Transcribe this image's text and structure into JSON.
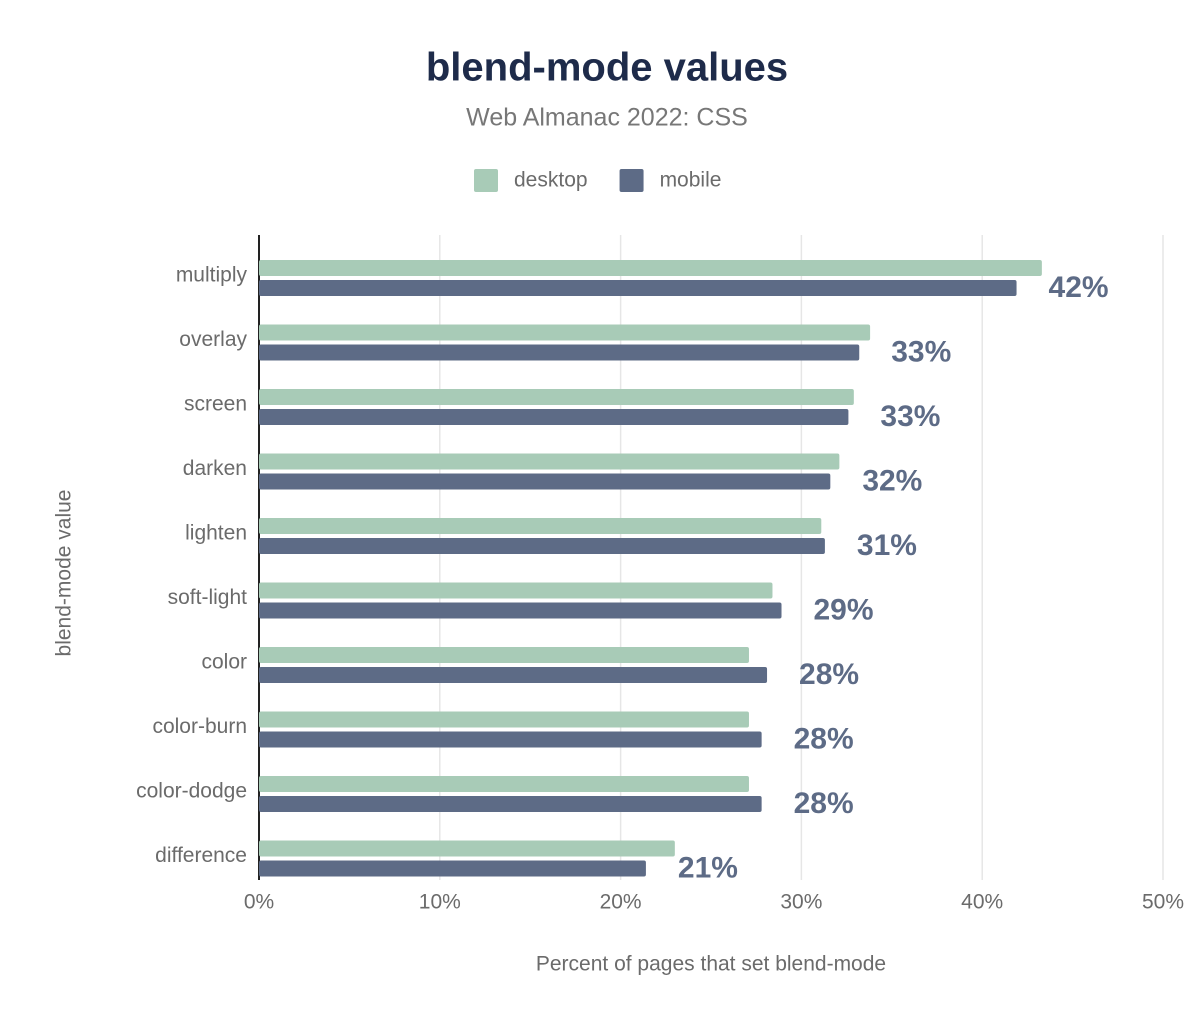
{
  "chart_data": {
    "type": "bar",
    "orientation": "horizontal",
    "title": "blend-mode values",
    "subtitle": "Web Almanac 2022: CSS",
    "x_label": "Percent of pages that set blend-mode",
    "y_label": "blend-mode value",
    "categories": [
      "multiply",
      "overlay",
      "screen",
      "darken",
      "lighten",
      "soft-light",
      "color",
      "color-burn",
      "color-dodge",
      "difference"
    ],
    "series": [
      {
        "name": "desktop",
        "color": "#a8cbb7",
        "values": [
          43.3,
          33.8,
          32.9,
          32.1,
          31.1,
          28.4,
          27.1,
          27.1,
          27.1,
          23.0
        ]
      },
      {
        "name": "mobile",
        "color": "#5d6b86",
        "values": [
          41.9,
          33.2,
          32.6,
          31.6,
          31.3,
          28.9,
          28.1,
          27.8,
          27.8,
          21.4
        ],
        "value_labels": [
          "42%",
          "33%",
          "33%",
          "32%",
          "31%",
          "29%",
          "28%",
          "28%",
          "28%",
          "21%"
        ]
      }
    ],
    "xlim": [
      0,
      50
    ],
    "xticks": [
      {
        "value": 0,
        "label": "0%"
      },
      {
        "value": 10,
        "label": "10%"
      },
      {
        "value": 20,
        "label": "20%"
      },
      {
        "value": 30,
        "label": "30%"
      },
      {
        "value": 40,
        "label": "40%"
      },
      {
        "value": 50,
        "label": "50%"
      }
    ],
    "grid": true
  }
}
